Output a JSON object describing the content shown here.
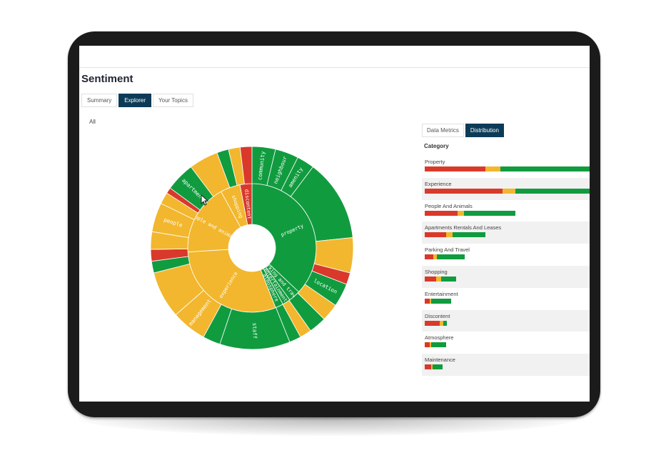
{
  "page": {
    "title": "Sentiment",
    "tabs": [
      {
        "label": "Summary",
        "active": false
      },
      {
        "label": "Explorer",
        "active": true
      },
      {
        "label": "Your Topics",
        "active": false
      }
    ],
    "filter_label": "All"
  },
  "colors": {
    "negative": "#d9392b",
    "neutral": "#f2b72e",
    "positive": "#119b3f",
    "active_tab": "#0d3b57"
  },
  "sunburst": {
    "inner_ring": [
      {
        "label": "property",
        "value": 37,
        "sentiment": "positive"
      },
      {
        "label": "parking and travel",
        "value": 3,
        "sentiment": "positive"
      },
      {
        "label": "entertainment",
        "value": 2,
        "sentiment": "positive"
      },
      {
        "label": "atmosphere",
        "value": 2,
        "sentiment": "positive"
      },
      {
        "label": "experience",
        "value": 30,
        "sentiment": "neutral"
      },
      {
        "label": "people and animals",
        "value": 18,
        "sentiment": "neutral"
      },
      {
        "label": "shopping",
        "value": 5,
        "sentiment": "neutral"
      },
      {
        "label": "discontent",
        "value": 3,
        "sentiment": "negative"
      }
    ],
    "outer_ring": [
      {
        "label": "community",
        "value": 4,
        "sentiment": "positive"
      },
      {
        "label": "neighbour",
        "value": 4,
        "sentiment": "positive"
      },
      {
        "label": "amenity",
        "value": 3,
        "sentiment": "positive"
      },
      {
        "label": "",
        "value": 14,
        "sentiment": "positive"
      },
      {
        "label": "",
        "value": 6,
        "sentiment": "neutral"
      },
      {
        "label": "",
        "value": 2,
        "sentiment": "negative"
      },
      {
        "label": "location",
        "value": 4,
        "sentiment": "positive"
      },
      {
        "label": "",
        "value": 3,
        "sentiment": "neutral"
      },
      {
        "label": "",
        "value": 3,
        "sentiment": "positive"
      },
      {
        "label": "",
        "value": 2,
        "sentiment": "neutral"
      },
      {
        "label": "",
        "value": 2,
        "sentiment": "positive"
      },
      {
        "label": "staff",
        "value": 12,
        "sentiment": "positive"
      },
      {
        "label": "",
        "value": 3,
        "sentiment": "positive"
      },
      {
        "label": "management",
        "value": 6,
        "sentiment": "neutral"
      },
      {
        "label": "",
        "value": 8,
        "sentiment": "neutral"
      },
      {
        "label": "",
        "value": 2,
        "sentiment": "positive"
      },
      {
        "label": "",
        "value": 2,
        "sentiment": "negative"
      },
      {
        "label": "",
        "value": 3,
        "sentiment": "neutral"
      },
      {
        "label": "people",
        "value": 5,
        "sentiment": "neutral"
      },
      {
        "label": "",
        "value": 2,
        "sentiment": "neutral"
      },
      {
        "label": "",
        "value": 1,
        "sentiment": "negative"
      },
      {
        "label": "apartment",
        "value": 5,
        "sentiment": "positive"
      },
      {
        "label": "",
        "value": 5,
        "sentiment": "neutral"
      },
      {
        "label": "",
        "value": 2,
        "sentiment": "positive"
      },
      {
        "label": "",
        "value": 2,
        "sentiment": "neutral"
      },
      {
        "label": "",
        "value": 2,
        "sentiment": "negative"
      }
    ]
  },
  "distribution": {
    "tabs": [
      {
        "label": "Data Metrics",
        "active": false
      },
      {
        "label": "Distribution",
        "active": true
      }
    ],
    "heading": "Category",
    "categories": [
      {
        "name": "Property",
        "negative": 0.37,
        "neutral": 0.09,
        "positive": 0.54
      },
      {
        "name": "Experience",
        "negative": 0.47,
        "neutral": 0.08,
        "positive": 0.45
      },
      {
        "name": "People And Animals",
        "negative": 0.2,
        "neutral": 0.04,
        "positive": 0.31
      },
      {
        "name": "Apartments Rentals And Leases",
        "negative": 0.13,
        "neutral": 0.04,
        "positive": 0.2
      },
      {
        "name": "Parking And Travel",
        "negative": 0.05,
        "neutral": 0.02,
        "positive": 0.17
      },
      {
        "name": "Shopping",
        "negative": 0.07,
        "neutral": 0.03,
        "positive": 0.09
      },
      {
        "name": "Entertainment",
        "negative": 0.03,
        "neutral": 0.01,
        "positive": 0.12
      },
      {
        "name": "Discontent",
        "negative": 0.09,
        "neutral": 0.02,
        "positive": 0.02
      },
      {
        "name": "Atmosphere",
        "negative": 0.03,
        "neutral": 0.01,
        "positive": 0.09
      },
      {
        "name": "Maintenance",
        "negative": 0.04,
        "neutral": 0.01,
        "positive": 0.06
      }
    ]
  }
}
